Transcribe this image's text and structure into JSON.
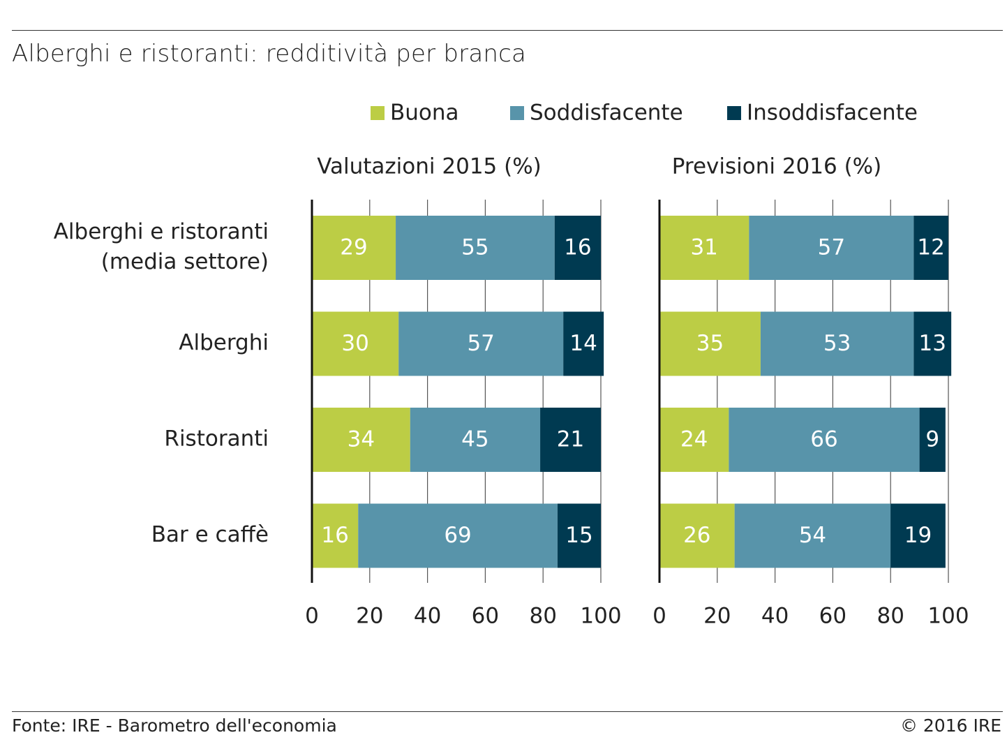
{
  "title": "Alberghi e ristoranti: redditività per branca",
  "source": "Fonte: IRE - Barometro dell'economia",
  "copyright": "© 2016 IRE",
  "colors": {
    "buona": "#bccd45",
    "soddisfacente": "#5894aa",
    "insoddisfacente": "#003a51",
    "grid": "#555555",
    "axis": "#111111"
  },
  "chart_data": {
    "type": "bar",
    "stacked": true,
    "orientation": "horizontal",
    "legend_position": "top",
    "categories": [
      "Alberghi e ristoranti (media settore)",
      "Alberghi",
      "Ristoranti",
      "Bar e caffè"
    ],
    "category_lines": [
      [
        "Alberghi e ristoranti",
        "(media settore)"
      ],
      [
        "Alberghi"
      ],
      [
        "Ristoranti"
      ],
      [
        "Bar e caffè"
      ]
    ],
    "series_names": [
      "Buona",
      "Soddisfacente",
      "Insoddisfacente"
    ],
    "xlim": [
      0,
      100
    ],
    "xticks": [
      0,
      20,
      40,
      60,
      80,
      100
    ],
    "grid": true,
    "panels": [
      {
        "title": "Valutazioni 2015 (%)",
        "series": [
          {
            "name": "Buona",
            "values": [
              29,
              30,
              34,
              16
            ]
          },
          {
            "name": "Soddisfacente",
            "values": [
              55,
              57,
              45,
              69
            ]
          },
          {
            "name": "Insoddisfacente",
            "values": [
              16,
              14,
              21,
              15
            ]
          }
        ]
      },
      {
        "title": "Previsioni 2016 (%)",
        "series": [
          {
            "name": "Buona",
            "values": [
              31,
              35,
              24,
              26
            ]
          },
          {
            "name": "Soddisfacente",
            "values": [
              57,
              53,
              66,
              54
            ]
          },
          {
            "name": "Insoddisfacente",
            "values": [
              12,
              13,
              9,
              19
            ]
          }
        ]
      }
    ]
  }
}
